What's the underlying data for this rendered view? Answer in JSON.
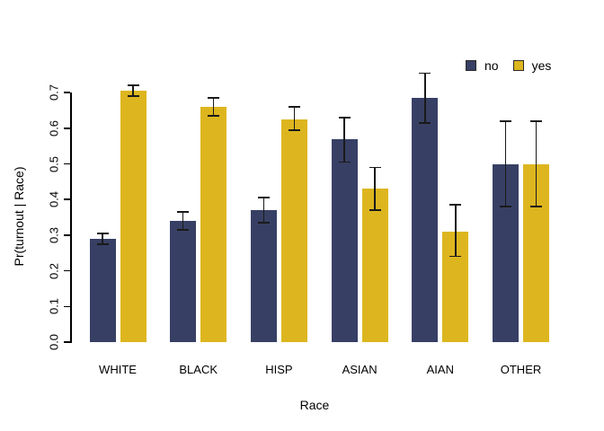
{
  "chart_data": {
    "type": "bar",
    "title": "",
    "xlabel": "Race",
    "ylabel": "Pr(turnout | Race)",
    "categories": [
      "WHITE",
      "BLACK",
      "HISP",
      "ASIAN",
      "AIAN",
      "OTHER"
    ],
    "series": [
      {
        "name": "no",
        "color": "#374064",
        "values": [
          0.29,
          0.34,
          0.37,
          0.57,
          0.685,
          0.5
        ],
        "ci_low": [
          0.275,
          0.315,
          0.335,
          0.505,
          0.615,
          0.38
        ],
        "ci_high": [
          0.305,
          0.365,
          0.405,
          0.63,
          0.755,
          0.62
        ]
      },
      {
        "name": "yes",
        "color": "#DDB61F",
        "values": [
          0.705,
          0.66,
          0.625,
          0.43,
          0.31,
          0.5
        ],
        "ci_low": [
          0.69,
          0.635,
          0.595,
          0.37,
          0.24,
          0.38
        ],
        "ci_high": [
          0.72,
          0.685,
          0.66,
          0.49,
          0.385,
          0.62
        ]
      }
    ],
    "ylim": [
      0,
      0.7
    ],
    "y_ticks": [
      "0.0",
      "0.1",
      "0.2",
      "0.3",
      "0.4",
      "0.5",
      "0.6",
      "0.7"
    ],
    "grid": false,
    "legend_position": "top-right",
    "error_bars": true
  }
}
